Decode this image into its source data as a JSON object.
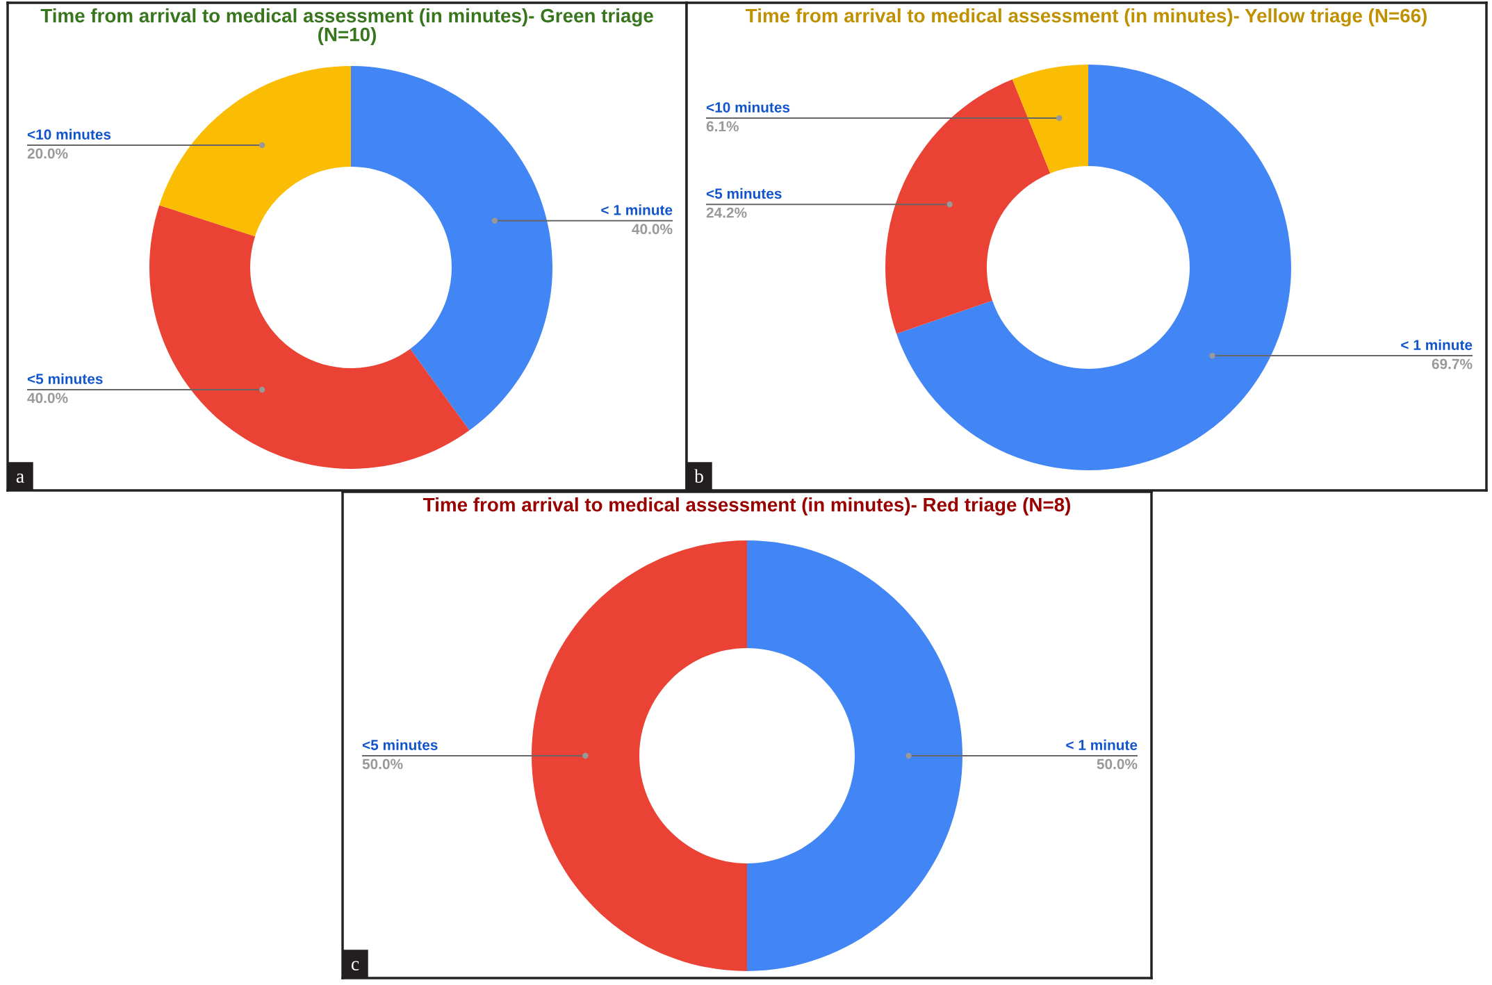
{
  "chart_data": [
    {
      "type": "donut",
      "title": "Time from arrival to medical assessment (in minutes)- Green triage (N=10)",
      "categories": [
        "< 1 minute",
        "<5 minutes",
        "<10 minutes"
      ],
      "values": [
        40,
        40,
        20
      ],
      "colors": [
        "#4285f4",
        "#ea4335",
        "#fbbc04"
      ],
      "value_labels": [
        "40.0%",
        "40.0%",
        "20.0%"
      ],
      "annotations": [
        "a"
      ]
    },
    {
      "type": "donut",
      "title": "Time from arrival to medical assessment (in minutes)- Yellow triage (N=66)",
      "categories": [
        "< 1 minute",
        "<5 minutes",
        "<10 minutes"
      ],
      "values": [
        69.7,
        24.2,
        6.1
      ],
      "colors": [
        "#4285f4",
        "#ea4335",
        "#fbbc04"
      ],
      "value_labels": [
        "69.7%",
        "24.2%",
        "6.1%"
      ],
      "annotations": [
        "b"
      ]
    },
    {
      "type": "donut",
      "title": "Time from arrival to medical assessment (in minutes)- Red triage (N=8)",
      "categories": [
        "< 1 minute",
        "<5 minutes"
      ],
      "values": [
        50,
        50
      ],
      "colors": [
        "#4285f4",
        "#ea4335"
      ],
      "value_labels": [
        "50.0%",
        "50.0%"
      ],
      "annotations": [
        "c"
      ]
    }
  ]
}
